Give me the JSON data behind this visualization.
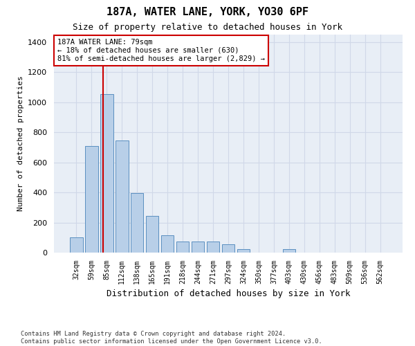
{
  "title": "187A, WATER LANE, YORK, YO30 6PF",
  "subtitle": "Size of property relative to detached houses in York",
  "xlabel": "Distribution of detached houses by size in York",
  "ylabel": "Number of detached properties",
  "categories": [
    "32sqm",
    "59sqm",
    "85sqm",
    "112sqm",
    "138sqm",
    "165sqm",
    "191sqm",
    "218sqm",
    "244sqm",
    "271sqm",
    "297sqm",
    "324sqm",
    "350sqm",
    "377sqm",
    "403sqm",
    "430sqm",
    "456sqm",
    "483sqm",
    "509sqm",
    "536sqm",
    "562sqm"
  ],
  "values": [
    100,
    710,
    1055,
    745,
    395,
    245,
    115,
    75,
    75,
    75,
    55,
    25,
    0,
    0,
    25,
    0,
    0,
    0,
    0,
    0,
    0
  ],
  "bar_color": "#b8cfe8",
  "bar_edge_color": "#5a8fc0",
  "vline_color": "#cc0000",
  "annotation_text": "187A WATER LANE: 79sqm\n← 18% of detached houses are smaller (630)\n81% of semi-detached houses are larger (2,829) →",
  "annotation_box_color": "#ffffff",
  "annotation_box_edge": "#cc0000",
  "ylim": [
    0,
    1450
  ],
  "yticks": [
    0,
    200,
    400,
    600,
    800,
    1000,
    1200,
    1400
  ],
  "grid_color": "#d0d8e8",
  "bg_color": "#e8eef6",
  "fig_bg_color": "#ffffff",
  "footer": "Contains HM Land Registry data © Crown copyright and database right 2024.\nContains public sector information licensed under the Open Government Licence v3.0."
}
